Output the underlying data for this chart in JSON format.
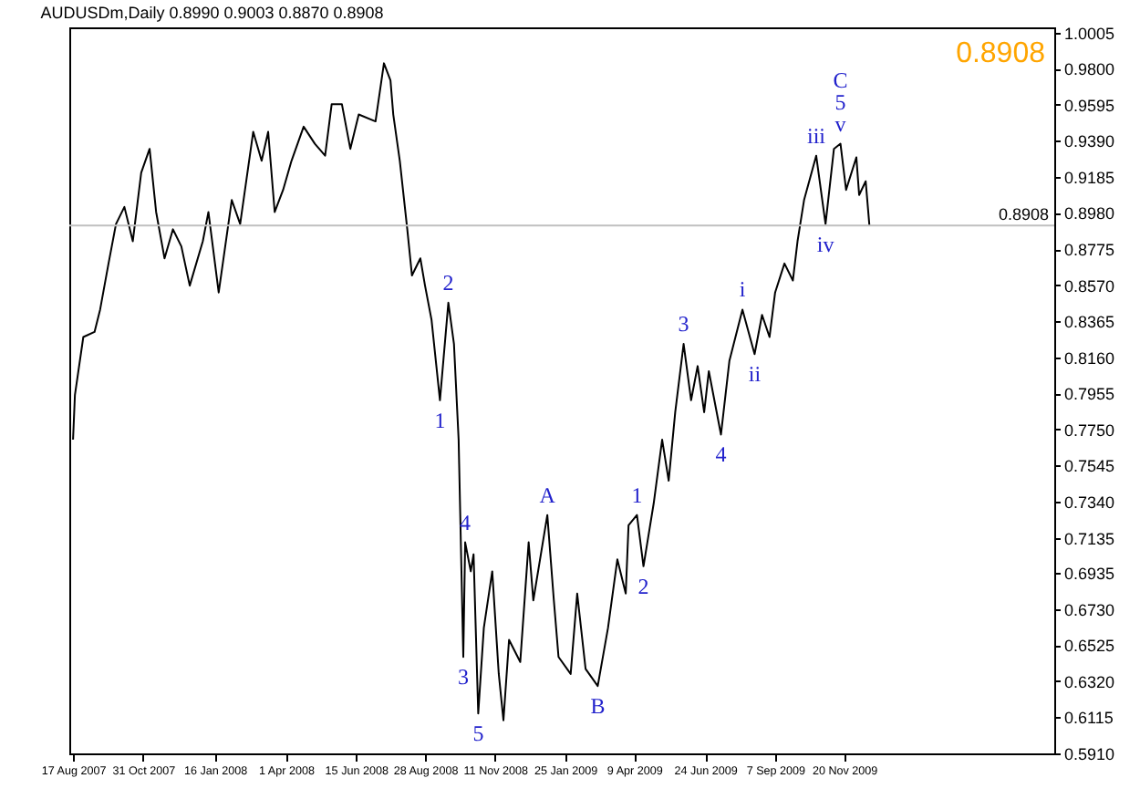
{
  "chart_data": {
    "type": "line",
    "title": "AUDUSDm,Daily  0.8990 0.9003 0.8870 0.8908",
    "x": [
      "2007-08-17",
      "2007-08-19",
      "2007-08-28",
      "2007-09-09",
      "2007-09-15",
      "2007-09-24",
      "2007-10-02",
      "2007-10-11",
      "2007-10-20",
      "2007-10-29",
      "2007-11-07",
      "2007-11-14",
      "2007-11-23",
      "2007-12-02",
      "2007-12-11",
      "2007-12-20",
      "2008-01-03",
      "2008-01-09",
      "2008-01-20",
      "2008-02-03",
      "2008-02-12",
      "2008-02-26",
      "2008-03-06",
      "2008-03-13",
      "2008-03-20",
      "2008-03-29",
      "2008-04-07",
      "2008-04-20",
      "2008-05-02",
      "2008-05-13",
      "2008-05-20",
      "2008-05-31",
      "2008-06-09",
      "2008-06-18",
      "2008-07-06",
      "2008-07-15",
      "2008-07-22",
      "2008-07-25",
      "2008-08-01",
      "2008-08-09",
      "2008-08-14",
      "2008-08-23",
      "2008-08-28",
      "2008-09-04",
      "2008-09-13",
      "2008-09-22",
      "2008-09-28",
      "2008-10-03",
      "2008-10-08",
      "2008-10-10",
      "2008-10-16",
      "2008-10-19",
      "2008-10-24",
      "2008-10-30",
      "2008-11-08",
      "2008-11-15",
      "2008-11-20",
      "2008-11-26",
      "2008-12-08",
      "2008-12-17",
      "2008-12-22",
      "2009-01-06",
      "2009-01-13",
      "2009-01-18",
      "2009-01-31",
      "2009-02-07",
      "2009-02-16",
      "2009-03-01",
      "2009-03-12",
      "2009-03-22",
      "2009-03-31",
      "2009-04-03",
      "2009-04-12",
      "2009-04-19",
      "2009-04-30",
      "2009-05-09",
      "2009-05-16",
      "2009-05-23",
      "2009-06-01",
      "2009-06-09",
      "2009-06-16",
      "2009-06-23",
      "2009-06-28",
      "2009-07-11",
      "2009-07-20",
      "2009-08-03",
      "2009-08-16",
      "2009-08-24",
      "2009-09-01",
      "2009-09-07",
      "2009-09-17",
      "2009-09-26",
      "2009-10-01",
      "2009-10-08",
      "2009-10-21",
      "2009-10-31",
      "2009-11-09",
      "2009-11-16",
      "2009-11-22",
      "2009-12-03",
      "2009-12-06",
      "2009-12-13",
      "2009-12-17"
    ],
    "series": [
      {
        "color": "#000000",
        "values": [
          0.7692,
          0.7945,
          0.8275,
          0.8304,
          0.8431,
          0.8693,
          0.8917,
          0.9014,
          0.8819,
          0.9208,
          0.9344,
          0.8985,
          0.8722,
          0.8887,
          0.879,
          0.8567,
          0.8819,
          0.8985,
          0.8528,
          0.9053,
          0.8917,
          0.9441,
          0.9276,
          0.9441,
          0.8985,
          0.9111,
          0.9276,
          0.947,
          0.9373,
          0.9305,
          0.9597,
          0.9597,
          0.9344,
          0.9539,
          0.95,
          0.983,
          0.9733,
          0.9539,
          0.9276,
          0.8887,
          0.8625,
          0.8722,
          0.8567,
          0.8372,
          0.7916,
          0.847,
          0.8236,
          0.7692,
          0.6458,
          0.7109,
          0.6944,
          0.7041,
          0.6137,
          0.6623,
          0.6944,
          0.6361,
          0.6098,
          0.6555,
          0.6429,
          0.7109,
          0.6779,
          0.7264,
          0.6779,
          0.6458,
          0.6361,
          0.6818,
          0.639,
          0.6293,
          0.6623,
          0.7012,
          0.6818,
          0.7206,
          0.7264,
          0.6973,
          0.7332,
          0.7692,
          0.7459,
          0.7848,
          0.8236,
          0.7916,
          0.811,
          0.7848,
          0.8081,
          0.7721,
          0.8139,
          0.8431,
          0.8178,
          0.8401,
          0.8275,
          0.8528,
          0.8693,
          0.8596,
          0.8819,
          0.9053,
          0.9305,
          0.8917,
          0.9344,
          0.9373,
          0.9111,
          0.9296,
          0.9082,
          0.916,
          0.8908
        ]
      }
    ],
    "xlim": [
      "2007-08-13",
      "2010-07-03"
    ],
    "xticks": [
      {
        "value": "2007-08-17",
        "label": "17 Aug 2007"
      },
      {
        "value": "2007-10-31",
        "label": "31 Oct 2007"
      },
      {
        "value": "2008-01-16",
        "label": "16 Jan 2008"
      },
      {
        "value": "2008-04-01",
        "label": "1 Apr 2008"
      },
      {
        "value": "2008-06-15",
        "label": "15 Jun 2008"
      },
      {
        "value": "2008-08-28",
        "label": "28 Aug 2008"
      },
      {
        "value": "2008-11-11",
        "label": "11 Nov 2008"
      },
      {
        "value": "2009-01-25",
        "label": "25 Jan 2009"
      },
      {
        "value": "2009-04-09",
        "label": "9 Apr 2009"
      },
      {
        "value": "2009-06-24",
        "label": "24 Jun 2009"
      },
      {
        "value": "2009-09-07",
        "label": "7 Sep 2009"
      },
      {
        "value": "2009-11-20",
        "label": "20 Nov 2009"
      }
    ],
    "ylim": [
      0.591,
      1.0034
    ],
    "yticks": [
      {
        "value": 1.0005,
        "label": "1.0005"
      },
      {
        "value": 0.98,
        "label": "0.9800"
      },
      {
        "value": 0.9595,
        "label": "0.9595"
      },
      {
        "value": 0.939,
        "label": "0.9390"
      },
      {
        "value": 0.9185,
        "label": "0.9185"
      },
      {
        "value": 0.898,
        "label": "0.8980"
      },
      {
        "value": 0.8775,
        "label": "0.8775"
      },
      {
        "value": 0.857,
        "label": "0.8570"
      },
      {
        "value": 0.8365,
        "label": "0.8365"
      },
      {
        "value": 0.816,
        "label": "0.8160"
      },
      {
        "value": 0.7955,
        "label": "0.7955"
      },
      {
        "value": 0.775,
        "label": "0.7750"
      },
      {
        "value": 0.7545,
        "label": "0.7545"
      },
      {
        "value": 0.734,
        "label": "0.7340"
      },
      {
        "value": 0.7135,
        "label": "0.7135"
      },
      {
        "value": 0.6935,
        "label": "0.6935"
      },
      {
        "value": 0.673,
        "label": "0.6730"
      },
      {
        "value": 0.6525,
        "label": "0.6525"
      },
      {
        "value": 0.632,
        "label": "0.6320"
      },
      {
        "value": 0.6115,
        "label": "0.6115"
      },
      {
        "value": 0.591,
        "label": "0.5910"
      }
    ],
    "ref_lines": [
      {
        "axis": "y",
        "value": 0.8908,
        "label": "0.8908",
        "color": "#c0c0c0"
      }
    ],
    "annotations": [
      {
        "text": "1",
        "x": "2008-09-13",
        "y": 0.7916
      },
      {
        "text": "2",
        "x": "2008-09-22",
        "y": 0.847
      },
      {
        "text": "3",
        "x": "2008-10-08",
        "y": 0.6458
      },
      {
        "text": "4",
        "x": "2008-10-10",
        "y": 0.7109
      },
      {
        "text": "5",
        "x": "2008-10-24",
        "y": 0.6137
      },
      {
        "text": "A",
        "x": "2009-01-06",
        "y": 0.7264
      },
      {
        "text": "B",
        "x": "2009-03-01",
        "y": 0.6293
      },
      {
        "text": "1",
        "x": "2009-04-12",
        "y": 0.7264
      },
      {
        "text": "2",
        "x": "2009-04-19",
        "y": 0.6973
      },
      {
        "text": "3",
        "x": "2009-06-01",
        "y": 0.8236
      },
      {
        "text": "4",
        "x": "2009-07-11",
        "y": 0.7721
      },
      {
        "text": "i",
        "x": "2009-08-03",
        "y": 0.8431
      },
      {
        "text": "ii",
        "x": "2009-08-16",
        "y": 0.8178
      },
      {
        "text": "iii",
        "x": "2009-10-21",
        "y": 0.9305
      },
      {
        "text": "iv",
        "x": "2009-10-31",
        "y": 0.8917
      },
      {
        "text": "v",
        "x": "2009-11-16",
        "y": 0.9373
      },
      {
        "text": "5",
        "x": "2009-11-16",
        "y": 0.9373
      },
      {
        "text": "C",
        "x": "2009-11-16",
        "y": 0.9373
      },
      "0.8908"
    ]
  }
}
